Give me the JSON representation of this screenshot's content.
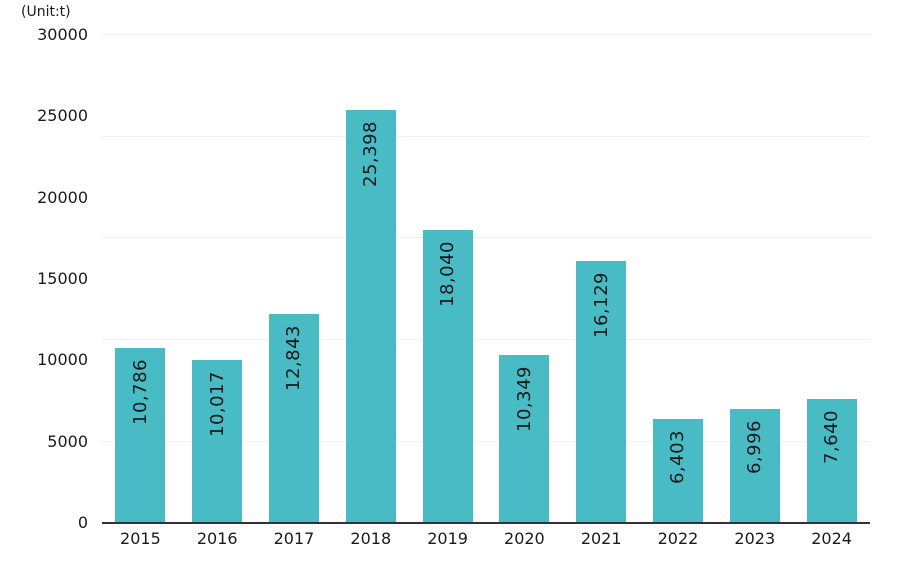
{
  "chart_data": {
    "type": "bar",
    "title": "",
    "unit_label": "(Unit:t)",
    "xlabel": "",
    "ylabel": "",
    "categories": [
      "2015",
      "2016",
      "2017",
      "2018",
      "2019",
      "2020",
      "2021",
      "2022",
      "2023",
      "2024"
    ],
    "values": [
      10786,
      10017,
      12843,
      25398,
      18040,
      10349,
      16129,
      6403,
      6996,
      7640
    ],
    "value_labels": [
      "10,786",
      "10,017",
      "12,843",
      "25,398",
      "18,040",
      "10,349",
      "16,129",
      "6,403",
      "6,996",
      "7,640"
    ],
    "ylim": [
      0,
      30000
    ],
    "yticks": [
      0,
      5000,
      10000,
      15000,
      20000,
      25000,
      30000
    ],
    "ytick_labels": [
      "0",
      "5000",
      "10000",
      "15000",
      "20000",
      "25000",
      "30000"
    ],
    "gridline_values": [
      5000,
      11250,
      17500,
      23750,
      30000
    ],
    "grid": "on",
    "legend": "none",
    "value_label_rotation": -90,
    "bar_color": "#48BBC5",
    "axis_color": "#333333",
    "grid_color": "#F0F0F0",
    "text_color": "#1A1A1A"
  }
}
